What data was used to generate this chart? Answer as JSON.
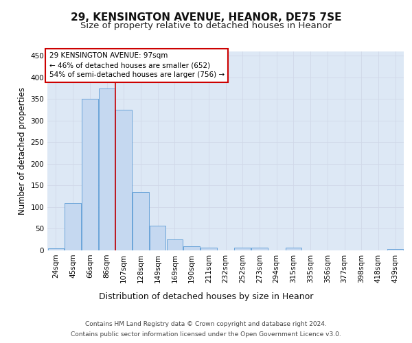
{
  "title1": "29, KENSINGTON AVENUE, HEANOR, DE75 7SE",
  "title2": "Size of property relative to detached houses in Heanor",
  "xlabel": "Distribution of detached houses by size in Heanor",
  "ylabel": "Number of detached properties",
  "categories": [
    "24sqm",
    "45sqm",
    "66sqm",
    "86sqm",
    "107sqm",
    "128sqm",
    "149sqm",
    "169sqm",
    "190sqm",
    "211sqm",
    "232sqm",
    "252sqm",
    "273sqm",
    "294sqm",
    "315sqm",
    "335sqm",
    "356sqm",
    "377sqm",
    "398sqm",
    "418sqm",
    "439sqm"
  ],
  "values": [
    5,
    110,
    350,
    375,
    325,
    135,
    57,
    25,
    10,
    6,
    0,
    6,
    6,
    0,
    6,
    0,
    0,
    0,
    0,
    0,
    3
  ],
  "bar_color": "#c5d8f0",
  "bar_edge_color": "#5b9bd5",
  "vline_x_index": 3,
  "vline_color": "#cc0000",
  "annotation_line1": "29 KENSINGTON AVENUE: 97sqm",
  "annotation_line2": "← 46% of detached houses are smaller (652)",
  "annotation_line3": "54% of semi-detached houses are larger (756) →",
  "annotation_box_color": "#ffffff",
  "annotation_box_edge": "#cc0000",
  "footer1": "Contains HM Land Registry data © Crown copyright and database right 2024.",
  "footer2": "Contains public sector information licensed under the Open Government Licence v3.0.",
  "ylim": [
    0,
    460
  ],
  "yticks": [
    0,
    50,
    100,
    150,
    200,
    250,
    300,
    350,
    400,
    450
  ],
  "grid_color": "#d0d8e8",
  "bg_color": "#dde8f5",
  "fig_bg": "#ffffff",
  "title1_fontsize": 11,
  "title2_fontsize": 9.5,
  "xlabel_fontsize": 9,
  "ylabel_fontsize": 8.5,
  "tick_fontsize": 7.5,
  "footer_fontsize": 6.5,
  "annotation_fontsize": 7.5
}
